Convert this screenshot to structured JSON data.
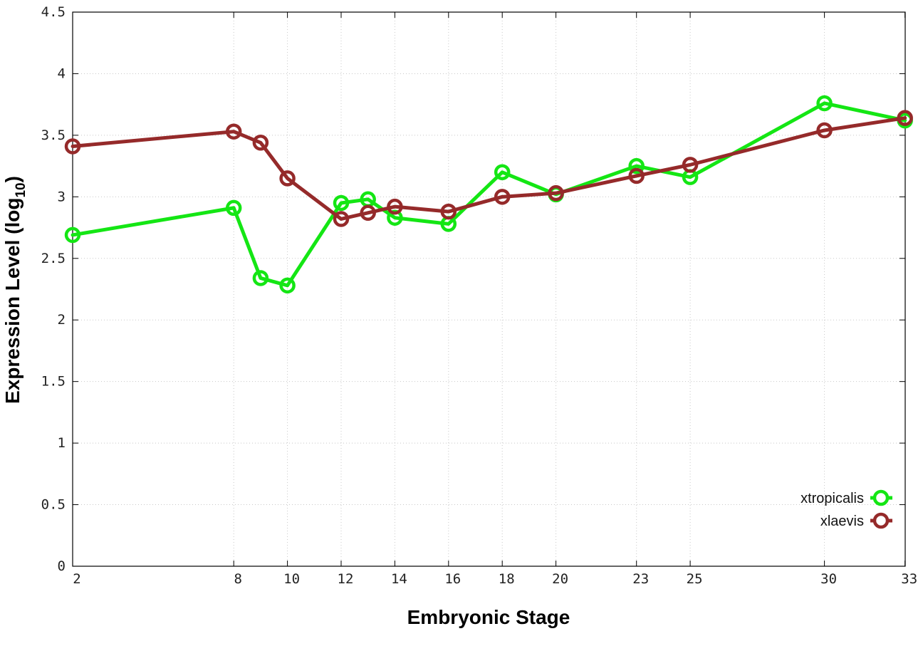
{
  "chart_data": {
    "type": "line",
    "xlabel": "Embryonic Stage",
    "ylabel_main": "Expression Level (log",
    "ylabel_sub": "10",
    "ylabel_close": ")",
    "ylim": [
      0,
      4.5
    ],
    "y_ticks": [
      "0",
      "0.5",
      "1",
      "1.5",
      "2",
      "2.5",
      "3",
      "3.5",
      "4",
      "4.5"
    ],
    "x_ticks": [
      "2",
      "8",
      "10",
      "12",
      "14",
      "16",
      "18",
      "20",
      "23",
      "25",
      "30",
      "33"
    ],
    "grid": true,
    "legend_position": "bottom-right",
    "series": [
      {
        "name": "xtropicalis",
        "color": "#14e614",
        "values": [
          2.69,
          2.91,
          2.34,
          2.28,
          2.95,
          2.98,
          2.83,
          2.78,
          3.2,
          3.02,
          3.25,
          3.16,
          3.76,
          3.62
        ]
      },
      {
        "name": "xlaevis",
        "color": "#952a2a",
        "values": [
          3.41,
          3.53,
          3.44,
          3.15,
          2.82,
          2.87,
          2.92,
          2.88,
          3.0,
          3.03,
          3.17,
          3.26,
          3.54,
          3.64
        ]
      }
    ]
  }
}
